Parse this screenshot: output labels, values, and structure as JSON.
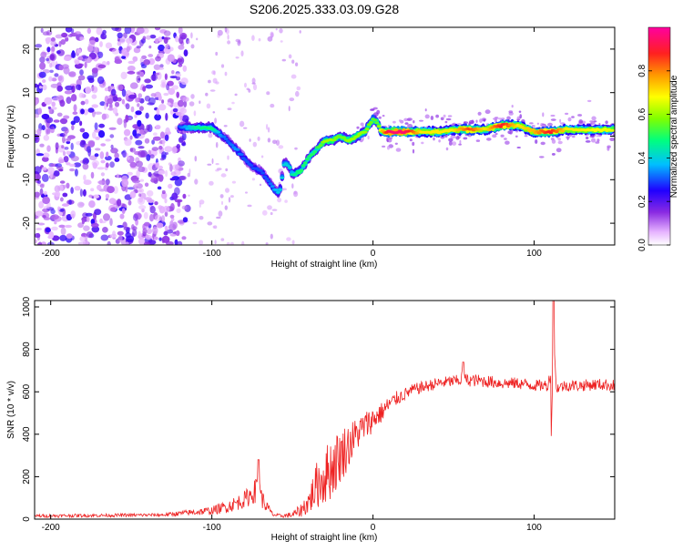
{
  "page": {
    "title": "S206.2025.333.03.09.G28"
  },
  "chart_data": [
    {
      "type": "heatmap",
      "name": "spectrogram",
      "xlabel": "Height of straight line (km)",
      "ylabel": "Frequency (Hz)",
      "xlim": [
        -210,
        150
      ],
      "ylim": [
        -25,
        25
      ],
      "xticks": [
        -200,
        -100,
        0,
        100
      ],
      "yticks": [
        -20,
        -10,
        0,
        10,
        20
      ],
      "grid": false,
      "colorbar": {
        "label": "Normalized spectral amplitude",
        "range": [
          0,
          1
        ],
        "ticks": [
          "0.0",
          "0.2",
          "0.4",
          "0.6",
          "0.8"
        ],
        "tick_values": [
          0.0,
          0.2,
          0.4,
          0.6,
          0.8
        ],
        "colormap": "rainbow (white-violet-blue-cyan-green-yellow-orange-red-magenta)"
      },
      "ridge": {
        "description": "dominant Doppler frequency track",
        "x": [
          -120,
          -110,
          -100,
          -95,
          -90,
          -85,
          -80,
          -75,
          -70,
          -65,
          -62,
          -58,
          -55,
          -52,
          -50,
          -45,
          -40,
          -35,
          -30,
          -25,
          -20,
          -15,
          -10,
          -5,
          0,
          3,
          5,
          10,
          20,
          30,
          40,
          50,
          60,
          70,
          80,
          90,
          100,
          110,
          120,
          130,
          150
        ],
        "y": [
          2,
          2,
          2,
          0.5,
          -1,
          -3,
          -5,
          -7,
          -8,
          -10,
          -12,
          -13,
          -6,
          -7,
          -9,
          -8,
          -5,
          -3,
          -1,
          -1,
          0,
          -1,
          0,
          1,
          4,
          3,
          1,
          1,
          1,
          1,
          1,
          1.5,
          1.5,
          1.5,
          2.5,
          2.5,
          1,
          1,
          1.5,
          1.5,
          1.5
        ],
        "intensity": [
          0.3,
          0.45,
          0.5,
          0.35,
          0.3,
          0.35,
          0.3,
          0.3,
          0.3,
          0.3,
          0.35,
          0.4,
          0.4,
          0.4,
          0.45,
          0.5,
          0.5,
          0.5,
          0.6,
          0.6,
          0.55,
          0.6,
          0.6,
          0.6,
          0.55,
          0.55,
          0.7,
          0.95,
          0.95,
          0.7,
          0.7,
          0.7,
          0.85,
          0.7,
          0.9,
          0.7,
          0.75,
          0.9,
          0.7,
          0.7,
          0.65
        ]
      },
      "noise_region": {
        "description": "scattered low-amplitude noise at large negative heights",
        "x_range": [
          -210,
          -115
        ],
        "y_range": [
          -25,
          25
        ],
        "amplitude": [
          0.05,
          0.25
        ]
      }
    },
    {
      "type": "line",
      "name": "snr",
      "xlabel": "Height of straight line (km)",
      "ylabel": "SNR (10 * v/v)",
      "xlim": [
        -210,
        150
      ],
      "ylim": [
        0,
        1030
      ],
      "xticks": [
        -200,
        -100,
        0,
        100
      ],
      "yticks": [
        0,
        200,
        400,
        600,
        800,
        1000
      ],
      "grid": false,
      "series": [
        {
          "name": "SNR",
          "color": "#ee2222",
          "trend": {
            "x": [
              -210,
              -130,
              -100,
              -90,
              -80,
              -72,
              -67,
              -62,
              -57,
              -50,
              -45,
              -40,
              -35,
              -30,
              -25,
              -20,
              -15,
              -10,
              -5,
              0,
              5,
              10,
              15,
              20,
              25,
              30,
              35,
              40,
              50,
              60,
              70,
              80,
              90,
              100,
              105,
              110,
              115,
              120,
              130,
              140,
              150
            ],
            "y": [
              15,
              20,
              40,
              60,
              90,
              140,
              70,
              20,
              15,
              20,
              40,
              80,
              160,
              200,
              250,
              300,
              350,
              400,
              440,
              470,
              500,
              540,
              570,
              590,
              610,
              620,
              630,
              640,
              650,
              655,
              650,
              640,
              640,
              630,
              630,
              630,
              620,
              630,
              630,
              635,
              630
            ],
            "noise": [
              8,
              8,
              20,
              30,
              40,
              60,
              35,
              8,
              8,
              15,
              30,
              60,
              110,
              140,
              150,
              130,
              110,
              80,
              70,
              60,
              50,
              40,
              35,
              30,
              28,
              28,
              28,
              28,
              28,
              30,
              30,
              28,
              28,
              28,
              28,
              28,
              28,
              28,
              28,
              28,
              28
            ]
          },
          "features": [
            {
              "x": 56,
              "y": 740,
              "note": "local spike"
            },
            {
              "x": 110.5,
              "y": 880,
              "note": "sharp peak"
            },
            {
              "x": 111,
              "y": 330,
              "note": "sharp dip"
            },
            {
              "x": 112,
              "y": 1030,
              "note": "maximum spike"
            },
            {
              "x": -71,
              "y": 280,
              "note": "early bump"
            }
          ]
        }
      ]
    }
  ]
}
